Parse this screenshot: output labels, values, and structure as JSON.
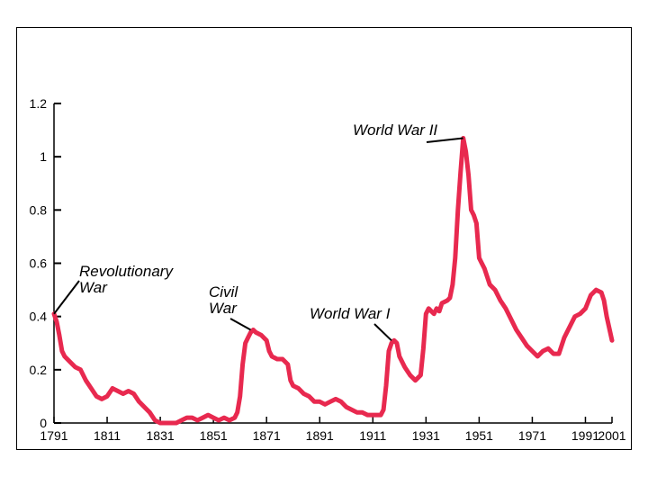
{
  "chart_data": {
    "type": "line",
    "title": "",
    "xlabel": "",
    "ylabel": "",
    "xlim": [
      1791,
      2001
    ],
    "ylim": [
      0,
      1.2
    ],
    "grid": false,
    "line_color": "#e8294f",
    "x_ticks": [
      {
        "value": 1791,
        "label": "1791"
      },
      {
        "value": 1811,
        "label": "1811"
      },
      {
        "value": 1831,
        "label": "1831"
      },
      {
        "value": 1851,
        "label": "1851"
      },
      {
        "value": 1871,
        "label": "1871"
      },
      {
        "value": 1891,
        "label": "1891"
      },
      {
        "value": 1911,
        "label": "1911"
      },
      {
        "value": 1931,
        "label": "1931"
      },
      {
        "value": 1951,
        "label": "1951"
      },
      {
        "value": 1971,
        "label": "1971"
      },
      {
        "value": 1991,
        "label": "1991"
      },
      {
        "value": 2001,
        "label": "2001"
      }
    ],
    "y_ticks": [
      {
        "value": 0,
        "label": "0"
      },
      {
        "value": 0.2,
        "label": "0.2"
      },
      {
        "value": 0.4,
        "label": "0.4"
      },
      {
        "value": 0.6,
        "label": "0.6"
      },
      {
        "value": 0.8,
        "label": "0.8"
      },
      {
        "value": 1,
        "label": "1"
      },
      {
        "value": 1.2,
        "label": "1.2"
      }
    ],
    "series": [
      {
        "x": [
          1791,
          1792,
          1793,
          1794,
          1795,
          1797,
          1799,
          1801,
          1803,
          1805,
          1807,
          1809,
          1811,
          1813,
          1815,
          1817,
          1819,
          1821,
          1823,
          1825,
          1827,
          1829,
          1831,
          1833,
          1835,
          1837,
          1839,
          1841,
          1843,
          1845,
          1847,
          1849,
          1851,
          1853,
          1855,
          1857,
          1859,
          1860,
          1861,
          1862,
          1863,
          1864,
          1865,
          1866,
          1867,
          1869,
          1871,
          1872,
          1873,
          1875,
          1877,
          1879,
          1880,
          1881,
          1883,
          1885,
          1887,
          1889,
          1891,
          1893,
          1895,
          1897,
          1899,
          1901,
          1903,
          1905,
          1907,
          1909,
          1911,
          1913,
          1914,
          1915,
          1916,
          1917,
          1918,
          1919,
          1920,
          1921,
          1923,
          1925,
          1927,
          1929,
          1930,
          1931,
          1932,
          1933,
          1934,
          1935,
          1936,
          1937,
          1939,
          1940,
          1941,
          1942,
          1943,
          1944,
          1945,
          1946,
          1947,
          1948,
          1949,
          1950,
          1951,
          1952,
          1953,
          1955,
          1957,
          1959,
          1961,
          1963,
          1965,
          1967,
          1969,
          1971,
          1973,
          1975,
          1977,
          1979,
          1981,
          1983,
          1985,
          1987,
          1989,
          1991,
          1993,
          1995,
          1997,
          1998,
          1999,
          2001
        ],
        "y": [
          0.41,
          0.38,
          0.33,
          0.27,
          0.25,
          0.23,
          0.21,
          0.2,
          0.16,
          0.13,
          0.1,
          0.09,
          0.1,
          0.13,
          0.12,
          0.11,
          0.12,
          0.11,
          0.08,
          0.06,
          0.04,
          0.01,
          0.0,
          0.0,
          0.0,
          0.0,
          0.01,
          0.02,
          0.02,
          0.01,
          0.02,
          0.03,
          0.02,
          0.01,
          0.02,
          0.01,
          0.02,
          0.04,
          0.1,
          0.22,
          0.3,
          0.32,
          0.34,
          0.35,
          0.34,
          0.33,
          0.31,
          0.27,
          0.25,
          0.24,
          0.24,
          0.22,
          0.16,
          0.14,
          0.13,
          0.11,
          0.1,
          0.08,
          0.08,
          0.07,
          0.08,
          0.09,
          0.08,
          0.06,
          0.05,
          0.04,
          0.04,
          0.03,
          0.03,
          0.03,
          0.03,
          0.05,
          0.14,
          0.27,
          0.3,
          0.31,
          0.3,
          0.25,
          0.21,
          0.18,
          0.16,
          0.18,
          0.28,
          0.41,
          0.43,
          0.42,
          0.41,
          0.43,
          0.42,
          0.45,
          0.46,
          0.47,
          0.52,
          0.62,
          0.8,
          0.94,
          1.07,
          1.02,
          0.93,
          0.8,
          0.78,
          0.75,
          0.62,
          0.6,
          0.58,
          0.52,
          0.5,
          0.46,
          0.43,
          0.39,
          0.35,
          0.32,
          0.29,
          0.27,
          0.25,
          0.27,
          0.28,
          0.26,
          0.26,
          0.32,
          0.36,
          0.4,
          0.41,
          0.43,
          0.48,
          0.5,
          0.49,
          0.46,
          0.4,
          0.31
        ]
      }
    ],
    "annotations": [
      {
        "lines": [
          "Revolutionary",
          "War"
        ],
        "x": 1791,
        "y": 0.41
      },
      {
        "lines": [
          "Civil",
          "War"
        ],
        "x": 1865,
        "y": 0.35
      },
      {
        "lines": [
          "World War I"
        ],
        "x": 1918,
        "y": 0.31
      },
      {
        "lines": [
          "World War II"
        ],
        "x": 1945,
        "y": 1.07
      }
    ]
  }
}
